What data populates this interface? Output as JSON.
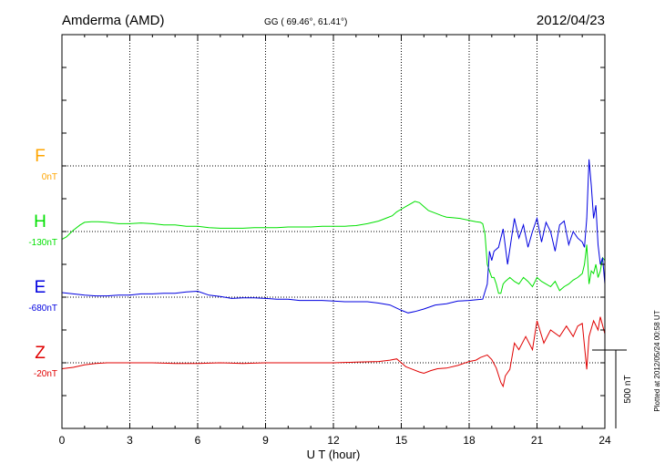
{
  "header": {
    "station": "Amderma (AMD)",
    "coords": "GG ( 69.46°,  61.41°)",
    "date": "2012/04/23"
  },
  "footer": {
    "plotted": "Plotted at 2012/05/24 00:58 UT"
  },
  "scale": {
    "label": "500 nT"
  },
  "colors": {
    "F": "#ffa500",
    "H": "#00e000",
    "E": "#0000e0",
    "Z": "#e00000"
  },
  "components": [
    {
      "key": "F",
      "letter": "F",
      "offset_label": "0nT"
    },
    {
      "key": "H",
      "letter": "H",
      "offset_label": "-130nT"
    },
    {
      "key": "E",
      "letter": "E",
      "offset_label": "-680nT"
    },
    {
      "key": "Z",
      "letter": "Z",
      "offset_label": "-20nT"
    }
  ],
  "chart_data": {
    "type": "line",
    "title": "Amderma (AMD)",
    "xlabel": "U T (hour)",
    "ylabel": "",
    "xlim": [
      0,
      24
    ],
    "x_ticks": [
      0,
      3,
      6,
      9,
      12,
      15,
      18,
      21,
      24
    ],
    "x_tick_labels": [
      "0",
      "3",
      "6",
      "9",
      "12",
      "15",
      "18",
      "21",
      "24"
    ],
    "y_unit": "nT",
    "ylim": [
      -2000,
      1000
    ],
    "y_grid_step": 250,
    "baselines": {
      "F": 0,
      "H": -500,
      "E": -1000,
      "Z": -1500
    },
    "grid": true,
    "series": [
      {
        "name": "H",
        "x": [
          0,
          0.2,
          0.5,
          0.8,
          1.0,
          1.3,
          1.6,
          2.0,
          2.5,
          3.0,
          3.5,
          4.0,
          4.5,
          5.0,
          5.5,
          6.0,
          6.5,
          7.0,
          7.5,
          8.0,
          8.5,
          9.0,
          9.5,
          10.0,
          10.5,
          11.0,
          11.5,
          12.0,
          12.5,
          13.0,
          13.5,
          14.0,
          14.3,
          14.6,
          14.8,
          15.0,
          15.2,
          15.4,
          15.6,
          15.8,
          16.0,
          16.2,
          16.5,
          16.8,
          17.0,
          17.3,
          17.6,
          18.0,
          18.3,
          18.5,
          18.6,
          18.7,
          18.8,
          18.9,
          19.0,
          19.1,
          19.2,
          19.3,
          19.4,
          19.5,
          19.6,
          19.8,
          20.0,
          20.2,
          20.4,
          20.6,
          20.8,
          21.0,
          21.2,
          21.4,
          21.6,
          21.8,
          22.0,
          22.2,
          22.4,
          22.6,
          22.8,
          23.0,
          23.1,
          23.2,
          23.3,
          23.4,
          23.5,
          23.6,
          23.7,
          23.8,
          23.9,
          24.0
        ],
        "values": [
          -560,
          -540,
          -490,
          -450,
          -430,
          -425,
          -425,
          -430,
          -440,
          -440,
          -435,
          -440,
          -450,
          -450,
          -460,
          -460,
          -470,
          -475,
          -475,
          -475,
          -470,
          -470,
          -470,
          -465,
          -465,
          -465,
          -460,
          -460,
          -460,
          -455,
          -440,
          -420,
          -400,
          -380,
          -350,
          -330,
          -310,
          -290,
          -270,
          -280,
          -310,
          -340,
          -360,
          -380,
          -390,
          -395,
          -400,
          -415,
          -425,
          -430,
          -440,
          -520,
          -750,
          -800,
          -850,
          -850,
          -900,
          -970,
          -970,
          -900,
          -880,
          -850,
          -880,
          -900,
          -850,
          -880,
          -920,
          -850,
          -880,
          -900,
          -920,
          -880,
          -950,
          -920,
          -900,
          -870,
          -850,
          -820,
          -750,
          -600,
          -900,
          -800,
          -820,
          -750,
          -850,
          -800,
          -700,
          -720
        ]
      },
      {
        "name": "E",
        "x": [
          0,
          0.5,
          1.0,
          1.5,
          2.0,
          2.5,
          3.0,
          3.5,
          4.0,
          4.5,
          5.0,
          5.5,
          6.0,
          6.5,
          7.0,
          7.5,
          8.0,
          8.5,
          9.0,
          9.5,
          10.0,
          10.5,
          11.0,
          11.5,
          12.0,
          12.5,
          13.0,
          13.5,
          14.0,
          14.5,
          15.0,
          15.3,
          15.6,
          16.0,
          16.5,
          17.0,
          17.5,
          18.0,
          18.3,
          18.6,
          18.8,
          18.9,
          19.0,
          19.1,
          19.3,
          19.5,
          19.7,
          20.0,
          20.2,
          20.4,
          20.6,
          20.8,
          21.0,
          21.2,
          21.4,
          21.6,
          21.8,
          22.0,
          22.2,
          22.4,
          22.6,
          22.8,
          23.0,
          23.1,
          23.2,
          23.3,
          23.4,
          23.5,
          23.6,
          23.7,
          23.8,
          23.9,
          24.0
        ],
        "values": [
          -965,
          -975,
          -985,
          -990,
          -990,
          -985,
          -985,
          -975,
          -975,
          -970,
          -970,
          -960,
          -955,
          -985,
          -995,
          -1010,
          -1005,
          -1005,
          -1010,
          -1015,
          -1015,
          -1025,
          -1025,
          -1025,
          -1030,
          -1035,
          -1035,
          -1035,
          -1045,
          -1060,
          -1100,
          -1120,
          -1110,
          -1090,
          -1060,
          -1050,
          -1030,
          -1025,
          -1020,
          -1015,
          -900,
          -650,
          -720,
          -650,
          -620,
          -480,
          -750,
          -400,
          -550,
          -450,
          -620,
          -500,
          -400,
          -580,
          -430,
          -500,
          -650,
          -450,
          -420,
          -600,
          -500,
          -550,
          -580,
          -620,
          -400,
          50,
          -150,
          -400,
          -300,
          -600,
          -750,
          -700,
          -900
        ]
      },
      {
        "name": "Z",
        "x": [
          0,
          0.5,
          1.0,
          1.5,
          2.0,
          3.0,
          4.0,
          5.0,
          6.0,
          7.0,
          8.0,
          9.0,
          10.0,
          11.0,
          12.0,
          13.0,
          14.0,
          14.5,
          14.8,
          15.0,
          15.2,
          15.5,
          15.8,
          16.0,
          16.3,
          16.6,
          17.0,
          17.5,
          18.0,
          18.3,
          18.5,
          18.8,
          19.0,
          19.2,
          19.4,
          19.5,
          19.6,
          19.8,
          20.0,
          20.2,
          20.5,
          20.8,
          21.0,
          21.3,
          21.6,
          22.0,
          22.3,
          22.6,
          22.8,
          23.0,
          23.2,
          23.3,
          23.5,
          23.7,
          23.8,
          24.0
        ],
        "values": [
          -1545,
          -1535,
          -1515,
          -1505,
          -1500,
          -1500,
          -1500,
          -1505,
          -1505,
          -1500,
          -1505,
          -1500,
          -1500,
          -1500,
          -1500,
          -1495,
          -1490,
          -1480,
          -1470,
          -1500,
          -1530,
          -1550,
          -1570,
          -1580,
          -1560,
          -1545,
          -1540,
          -1520,
          -1490,
          -1480,
          -1460,
          -1440,
          -1475,
          -1540,
          -1650,
          -1680,
          -1600,
          -1550,
          -1350,
          -1400,
          -1300,
          -1400,
          -1180,
          -1350,
          -1250,
          -1300,
          -1220,
          -1300,
          -1220,
          -1200,
          -1550,
          -1300,
          -1180,
          -1250,
          -1150,
          -1280
        ]
      }
    ]
  }
}
